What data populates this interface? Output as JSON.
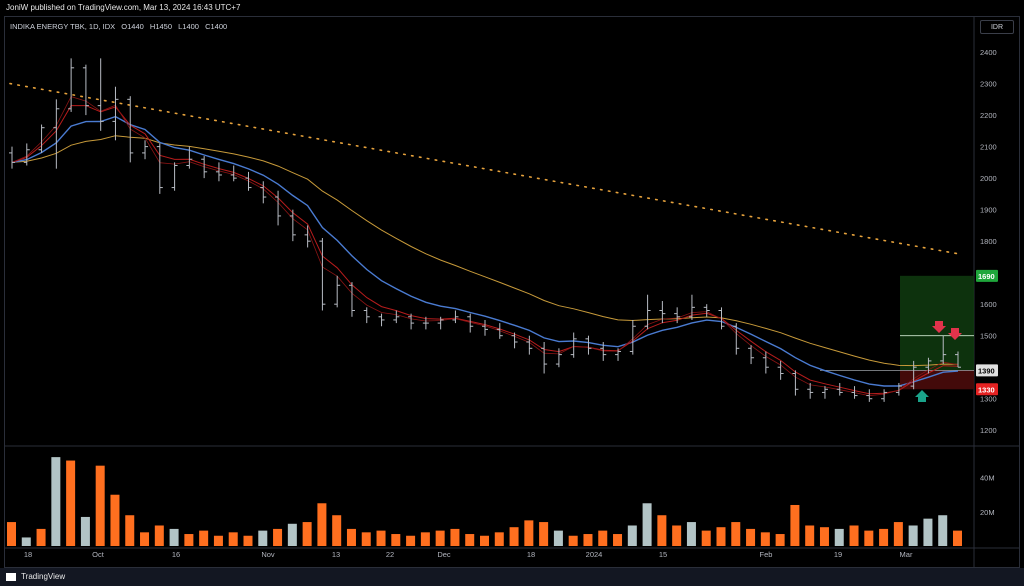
{
  "header": {
    "published": "JoniW published on TradingView.com, Mar 13, 2024 16:43 UTC+7"
  },
  "symbol": {
    "name": "INDIKA ENERGY TBK, 1D, IDX",
    "open": "O1440",
    "high": "H1450",
    "low": "L1400",
    "close": "C1400"
  },
  "currency_label": "IDR",
  "footer": {
    "brand": "TradingView"
  },
  "colors": {
    "up": "#9e9e9e",
    "down": "#9e9e9e",
    "vol_up": "#b2c4c6",
    "vol_down": "#ff6f1f",
    "ma_blue": "#4a7bd1",
    "ma_red": "#b71c1c",
    "ma_gold": "#c79a3a",
    "trend_dots": "#e6a23c",
    "target_green": "#0f3b0f",
    "stop_red": "#4a0b0b",
    "arrow_down": "#e0334b",
    "arrow_up": "#1aa38a"
  },
  "chart_data": {
    "type": "bar",
    "title": "INDIKA ENERGY TBK, 1D, IDX",
    "ylim": [
      1150,
      2470
    ],
    "y_ticks": [
      1200,
      1300,
      1400,
      1500,
      1600,
      1700,
      1800,
      1900,
      2000,
      2100,
      2200,
      2300,
      2400
    ],
    "volume_ticks": [
      {
        "label": "20M",
        "value": 20
      },
      {
        "label": "40M",
        "value": 40
      }
    ],
    "x_ticks": [
      "18",
      "Oct",
      "16",
      "Nov",
      "13",
      "22",
      "Dec",
      "18",
      "2024",
      "15",
      "Feb",
      "19",
      "Mar"
    ],
    "price_labels": [
      {
        "text": "1690",
        "value": 1690,
        "color": "#1fa63b"
      },
      {
        "text": "1390",
        "value": 1390,
        "color": "#e0e0e0"
      },
      {
        "text": "1330",
        "value": 1330,
        "color": "#e52222"
      }
    ],
    "ohlc": [
      [
        2080,
        2100,
        2030,
        2050
      ],
      [
        2050,
        2110,
        2040,
        2090
      ],
      [
        2090,
        2170,
        2080,
        2160
      ],
      [
        2160,
        2250,
        2030,
        2220
      ],
      [
        2220,
        2380,
        2210,
        2350
      ],
      [
        2350,
        2360,
        2200,
        2230
      ],
      [
        2230,
        2380,
        2150,
        2180
      ],
      [
        2180,
        2290,
        2120,
        2250
      ],
      [
        2250,
        2260,
        2050,
        2080
      ],
      [
        2080,
        2120,
        2060,
        2100
      ],
      [
        2100,
        2110,
        1950,
        1970
      ],
      [
        1970,
        2050,
        1960,
        2040
      ],
      [
        2040,
        2100,
        2030,
        2060
      ],
      [
        2060,
        2070,
        2000,
        2020
      ],
      [
        2020,
        2050,
        1990,
        2010
      ],
      [
        2010,
        2040,
        1990,
        2000
      ],
      [
        2000,
        2020,
        1960,
        1970
      ],
      [
        1970,
        1990,
        1920,
        1940
      ],
      [
        1940,
        1960,
        1850,
        1880
      ],
      [
        1880,
        1900,
        1800,
        1820
      ],
      [
        1820,
        1850,
        1780,
        1800
      ],
      [
        1800,
        1810,
        1580,
        1600
      ],
      [
        1600,
        1690,
        1590,
        1660
      ],
      [
        1660,
        1670,
        1560,
        1580
      ],
      [
        1580,
        1590,
        1540,
        1560
      ],
      [
        1560,
        1570,
        1530,
        1550
      ],
      [
        1550,
        1580,
        1540,
        1560
      ],
      [
        1560,
        1570,
        1520,
        1540
      ],
      [
        1540,
        1560,
        1520,
        1540
      ],
      [
        1540,
        1560,
        1520,
        1550
      ],
      [
        1550,
        1580,
        1540,
        1560
      ],
      [
        1560,
        1570,
        1510,
        1530
      ],
      [
        1530,
        1550,
        1500,
        1520
      ],
      [
        1520,
        1540,
        1490,
        1500
      ],
      [
        1500,
        1510,
        1460,
        1480
      ],
      [
        1480,
        1500,
        1440,
        1460
      ],
      [
        1460,
        1480,
        1380,
        1410
      ],
      [
        1410,
        1460,
        1400,
        1440
      ],
      [
        1440,
        1510,
        1430,
        1490
      ],
      [
        1490,
        1500,
        1440,
        1460
      ],
      [
        1460,
        1480,
        1420,
        1440
      ],
      [
        1440,
        1460,
        1420,
        1450
      ],
      [
        1450,
        1550,
        1440,
        1530
      ],
      [
        1530,
        1630,
        1520,
        1580
      ],
      [
        1580,
        1610,
        1540,
        1570
      ],
      [
        1570,
        1590,
        1540,
        1560
      ],
      [
        1560,
        1630,
        1550,
        1590
      ],
      [
        1590,
        1600,
        1560,
        1580
      ],
      [
        1580,
        1590,
        1520,
        1530
      ],
      [
        1530,
        1540,
        1440,
        1460
      ],
      [
        1460,
        1470,
        1410,
        1430
      ],
      [
        1430,
        1450,
        1380,
        1400
      ],
      [
        1400,
        1420,
        1360,
        1380
      ],
      [
        1380,
        1390,
        1310,
        1330
      ],
      [
        1330,
        1350,
        1300,
        1320
      ],
      [
        1320,
        1340,
        1300,
        1330
      ],
      [
        1330,
        1350,
        1310,
        1320
      ],
      [
        1320,
        1340,
        1300,
        1310
      ],
      [
        1310,
        1330,
        1290,
        1300
      ],
      [
        1300,
        1330,
        1290,
        1320
      ],
      [
        1320,
        1350,
        1310,
        1340
      ],
      [
        1340,
        1420,
        1330,
        1400
      ],
      [
        1400,
        1430,
        1380,
        1420
      ],
      [
        1420,
        1500,
        1410,
        1440
      ],
      [
        1440,
        1450,
        1400,
        1400
      ]
    ],
    "volume": [
      [
        14,
        "down"
      ],
      [
        5,
        "up"
      ],
      [
        10,
        "down"
      ],
      [
        52,
        "up"
      ],
      [
        50,
        "down"
      ],
      [
        17,
        "up"
      ],
      [
        47,
        "down"
      ],
      [
        30,
        "down"
      ],
      [
        18,
        "down"
      ],
      [
        8,
        "down"
      ],
      [
        12,
        "down"
      ],
      [
        10,
        "up"
      ],
      [
        7,
        "down"
      ],
      [
        9,
        "down"
      ],
      [
        6,
        "down"
      ],
      [
        8,
        "down"
      ],
      [
        6,
        "down"
      ],
      [
        9,
        "up"
      ],
      [
        10,
        "down"
      ],
      [
        13,
        "up"
      ],
      [
        14,
        "down"
      ],
      [
        25,
        "down"
      ],
      [
        18,
        "down"
      ],
      [
        10,
        "down"
      ],
      [
        8,
        "down"
      ],
      [
        9,
        "down"
      ],
      [
        7,
        "down"
      ],
      [
        6,
        "down"
      ],
      [
        8,
        "down"
      ],
      [
        9,
        "down"
      ],
      [
        10,
        "down"
      ],
      [
        7,
        "down"
      ],
      [
        6,
        "down"
      ],
      [
        8,
        "down"
      ],
      [
        11,
        "down"
      ],
      [
        15,
        "down"
      ],
      [
        14,
        "down"
      ],
      [
        9,
        "up"
      ],
      [
        6,
        "down"
      ],
      [
        7,
        "down"
      ],
      [
        9,
        "down"
      ],
      [
        7,
        "down"
      ],
      [
        12,
        "up"
      ],
      [
        25,
        "up"
      ],
      [
        18,
        "down"
      ],
      [
        12,
        "down"
      ],
      [
        14,
        "up"
      ],
      [
        9,
        "down"
      ],
      [
        11,
        "down"
      ],
      [
        14,
        "down"
      ],
      [
        10,
        "down"
      ],
      [
        8,
        "down"
      ],
      [
        7,
        "down"
      ],
      [
        24,
        "down"
      ],
      [
        12,
        "down"
      ],
      [
        11,
        "down"
      ],
      [
        10,
        "up"
      ],
      [
        12,
        "down"
      ],
      [
        9,
        "down"
      ],
      [
        10,
        "down"
      ],
      [
        14,
        "down"
      ],
      [
        12,
        "up"
      ],
      [
        16,
        "up"
      ],
      [
        18,
        "up"
      ],
      [
        9,
        "down"
      ]
    ],
    "trendline": {
      "from": 2300,
      "to": 1760
    },
    "lines": {
      "target": 1500,
      "entry": 1390,
      "stop": 1330
    },
    "target_zone": [
      1390,
      1690
    ],
    "stop_zone": [
      1330,
      1390
    ]
  }
}
